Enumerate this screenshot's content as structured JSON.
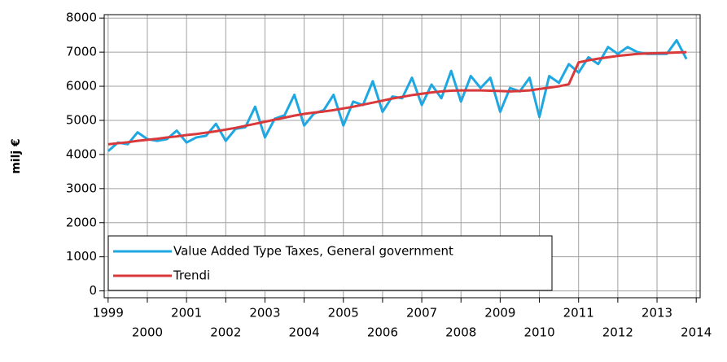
{
  "chart_data": {
    "type": "line",
    "y_label": "milj €",
    "x": [
      1999,
      1999.25,
      1999.5,
      1999.75,
      2000,
      2000.25,
      2000.5,
      2000.75,
      2001,
      2001.25,
      2001.5,
      2001.75,
      2002,
      2002.25,
      2002.5,
      2002.75,
      2003,
      2003.25,
      2003.5,
      2003.75,
      2004,
      2004.25,
      2004.5,
      2004.75,
      2005,
      2005.25,
      2005.5,
      2005.75,
      2006,
      2006.25,
      2006.5,
      2006.75,
      2007,
      2007.25,
      2007.5,
      2007.75,
      2008,
      2008.25,
      2008.5,
      2008.75,
      2009,
      2009.25,
      2009.5,
      2009.75,
      2010,
      2010.25,
      2010.5,
      2010.75,
      2011,
      2011.25,
      2011.5,
      2011.75,
      2012,
      2012.25,
      2012.5,
      2012.75,
      2013,
      2013.25,
      2013.5,
      2013.75
    ],
    "series": [
      {
        "name": "Value Added Type Taxes, General government",
        "color": "#1ea7e1",
        "values": [
          4100,
          4350,
          4300,
          4650,
          4450,
          4400,
          4450,
          4700,
          4350,
          4500,
          4550,
          4900,
          4400,
          4750,
          4800,
          5400,
          4500,
          5050,
          5150,
          5750,
          4850,
          5200,
          5300,
          5750,
          4850,
          5550,
          5450,
          6150,
          5250,
          5700,
          5650,
          6250,
          5450,
          6050,
          5650,
          6450,
          5550,
          6300,
          5950,
          6250,
          5250,
          5950,
          5850,
          6250,
          5100,
          6300,
          6100,
          6650,
          6400,
          6850,
          6650,
          7150,
          6950,
          7150,
          7000,
          6950,
          6950,
          6950,
          7350,
          6800
        ]
      },
      {
        "name": "Trendi",
        "color": "#d9393a",
        "values": [
          4300,
          4330,
          4360,
          4400,
          4430,
          4460,
          4500,
          4530,
          4570,
          4600,
          4640,
          4680,
          4730,
          4780,
          4840,
          4900,
          4960,
          5020,
          5080,
          5140,
          5190,
          5230,
          5260,
          5300,
          5350,
          5400,
          5460,
          5520,
          5580,
          5640,
          5690,
          5740,
          5780,
          5820,
          5850,
          5870,
          5880,
          5880,
          5880,
          5870,
          5860,
          5850,
          5860,
          5880,
          5920,
          5960,
          6000,
          6060,
          6700,
          6760,
          6810,
          6850,
          6890,
          6920,
          6950,
          6960,
          6970,
          6980,
          6990,
          7000
        ]
      }
    ],
    "xlim": [
      1998.9,
      2014.1
    ],
    "xticks": [
      1999,
      2000,
      2001,
      2002,
      2003,
      2004,
      2005,
      2006,
      2007,
      2008,
      2009,
      2010,
      2011,
      2012,
      2013,
      2014
    ],
    "ylim": [
      -200,
      8100
    ],
    "yticks": [
      0,
      1000,
      2000,
      3000,
      4000,
      5000,
      6000,
      7000,
      8000
    ],
    "grid": true,
    "legend": "lower left"
  }
}
